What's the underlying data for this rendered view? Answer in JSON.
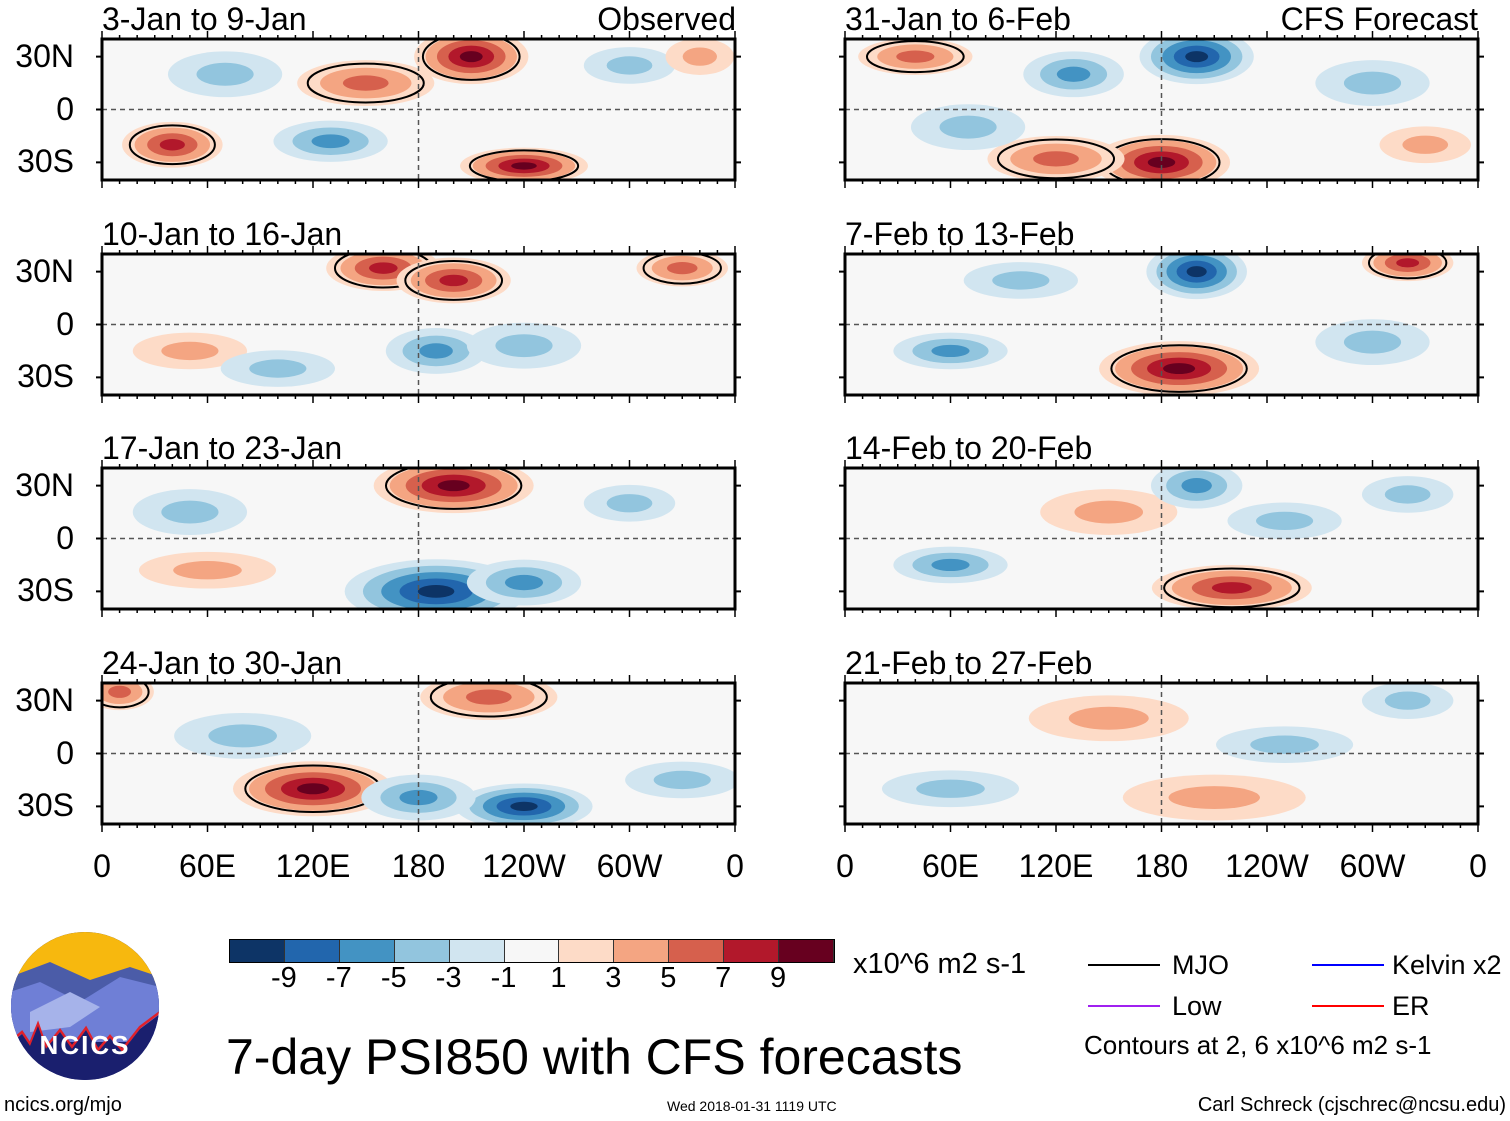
{
  "title": "7-day PSI850 with CFS forecasts",
  "left_label": "Observed",
  "right_label": "CFS Forecast",
  "site": "ncics.org/mjo",
  "timestamp": "Wed 2018-01-31 1119 UTC",
  "author": "Carl Schreck (cjschrec@ncsu.edu)",
  "logo_text": "NCICS",
  "units": "x10^6 m2 s-1",
  "contour_note": "Contours at 2, 6 x10^6 m2 s-1",
  "legend": [
    {
      "label": "MJO",
      "color": "#000000"
    },
    {
      "label": "Kelvin x2",
      "color": "#0000ff"
    },
    {
      "label": "Low",
      "color": "#a020f0"
    },
    {
      "label": "ER",
      "color": "#ff0000"
    }
  ],
  "lat_labels": [
    "30N",
    "0",
    "30S"
  ],
  "lon_labels": [
    "0",
    "60E",
    "120E",
    "180",
    "120W",
    "60W",
    "0"
  ],
  "colorbar": {
    "labels": [
      "-9",
      "-7",
      "-5",
      "-3",
      "-1",
      "1",
      "3",
      "5",
      "7",
      "9"
    ],
    "colors": [
      "#0d3466",
      "#2266ad",
      "#4393c3",
      "#92c5de",
      "#d1e5f0",
      "#f7f7f7",
      "#fddbc7",
      "#f4a582",
      "#d6604d",
      "#b2182b",
      "#67001f"
    ]
  },
  "chart_data": {
    "type": "heatmap",
    "variable": "850-hPa streamfunction anomaly",
    "lon_range": [
      0,
      360
    ],
    "lat_range": [
      -40,
      40
    ],
    "panels": [
      {
        "title": "3-Jan to 9-Jan",
        "kind": "observed",
        "features": [
          [
            210,
            30,
            25,
            12,
            9
          ],
          [
            150,
            15,
            30,
            10,
            5
          ],
          [
            40,
            -20,
            22,
            10,
            7
          ],
          [
            240,
            -32,
            28,
            8,
            9
          ],
          [
            70,
            20,
            25,
            10,
            -3
          ],
          [
            300,
            25,
            20,
            8,
            -3
          ],
          [
            130,
            -18,
            25,
            9,
            -5
          ],
          [
            340,
            30,
            15,
            8,
            3
          ]
        ]
      },
      {
        "title": "10-Jan to 16-Jan",
        "kind": "observed",
        "features": [
          [
            160,
            32,
            25,
            10,
            7
          ],
          [
            200,
            25,
            25,
            10,
            7
          ],
          [
            50,
            -15,
            25,
            8,
            3
          ],
          [
            190,
            -15,
            22,
            10,
            -5
          ],
          [
            240,
            -12,
            25,
            10,
            -3
          ],
          [
            100,
            -25,
            25,
            8,
            -3
          ],
          [
            330,
            32,
            20,
            8,
            5
          ]
        ]
      },
      {
        "title": "17-Jan to 23-Jan",
        "kind": "observed",
        "features": [
          [
            200,
            30,
            35,
            12,
            9
          ],
          [
            190,
            -30,
            40,
            14,
            -9
          ],
          [
            60,
            -18,
            30,
            8,
            3
          ],
          [
            240,
            -25,
            25,
            10,
            -5
          ],
          [
            50,
            15,
            25,
            10,
            -3
          ],
          [
            300,
            20,
            20,
            8,
            -3
          ]
        ]
      },
      {
        "title": "24-Jan to 30-Jan",
        "kind": "observed",
        "features": [
          [
            120,
            -20,
            35,
            12,
            9
          ],
          [
            220,
            32,
            30,
            10,
            5
          ],
          [
            240,
            -30,
            30,
            10,
            -9
          ],
          [
            180,
            -25,
            25,
            10,
            -5
          ],
          [
            80,
            10,
            30,
            10,
            -3
          ],
          [
            10,
            35,
            15,
            8,
            5
          ],
          [
            330,
            -15,
            25,
            8,
            -3
          ]
        ]
      },
      {
        "title": "31-Jan to 6-Feb",
        "kind": "forecast",
        "features": [
          [
            180,
            -30,
            30,
            12,
            9
          ],
          [
            120,
            -28,
            30,
            10,
            5
          ],
          [
            200,
            30,
            25,
            12,
            -9
          ],
          [
            130,
            20,
            22,
            10,
            -5
          ],
          [
            40,
            30,
            25,
            8,
            5
          ],
          [
            300,
            15,
            25,
            10,
            -3
          ],
          [
            330,
            -20,
            20,
            8,
            3
          ],
          [
            70,
            -10,
            25,
            10,
            -3
          ]
        ]
      },
      {
        "title": "7-Feb to 13-Feb",
        "kind": "forecast",
        "features": [
          [
            190,
            -25,
            35,
            12,
            9
          ],
          [
            200,
            30,
            22,
            12,
            -9
          ],
          [
            60,
            -15,
            25,
            8,
            -5
          ],
          [
            320,
            35,
            20,
            8,
            7
          ],
          [
            100,
            25,
            25,
            8,
            -3
          ],
          [
            300,
            -10,
            25,
            10,
            -3
          ]
        ]
      },
      {
        "title": "14-Feb to 20-Feb",
        "kind": "forecast",
        "features": [
          [
            220,
            -28,
            35,
            10,
            7
          ],
          [
            150,
            15,
            30,
            10,
            3
          ],
          [
            60,
            -15,
            25,
            8,
            -5
          ],
          [
            200,
            30,
            20,
            10,
            -5
          ],
          [
            250,
            10,
            25,
            8,
            -3
          ],
          [
            320,
            25,
            20,
            8,
            -3
          ]
        ]
      },
      {
        "title": "21-Feb to 27-Feb",
        "kind": "forecast",
        "features": [
          [
            150,
            20,
            35,
            10,
            3
          ],
          [
            210,
            -25,
            40,
            10,
            3
          ],
          [
            60,
            -20,
            30,
            8,
            -3
          ],
          [
            250,
            5,
            30,
            8,
            -3
          ],
          [
            320,
            30,
            20,
            8,
            -3
          ]
        ]
      }
    ]
  }
}
